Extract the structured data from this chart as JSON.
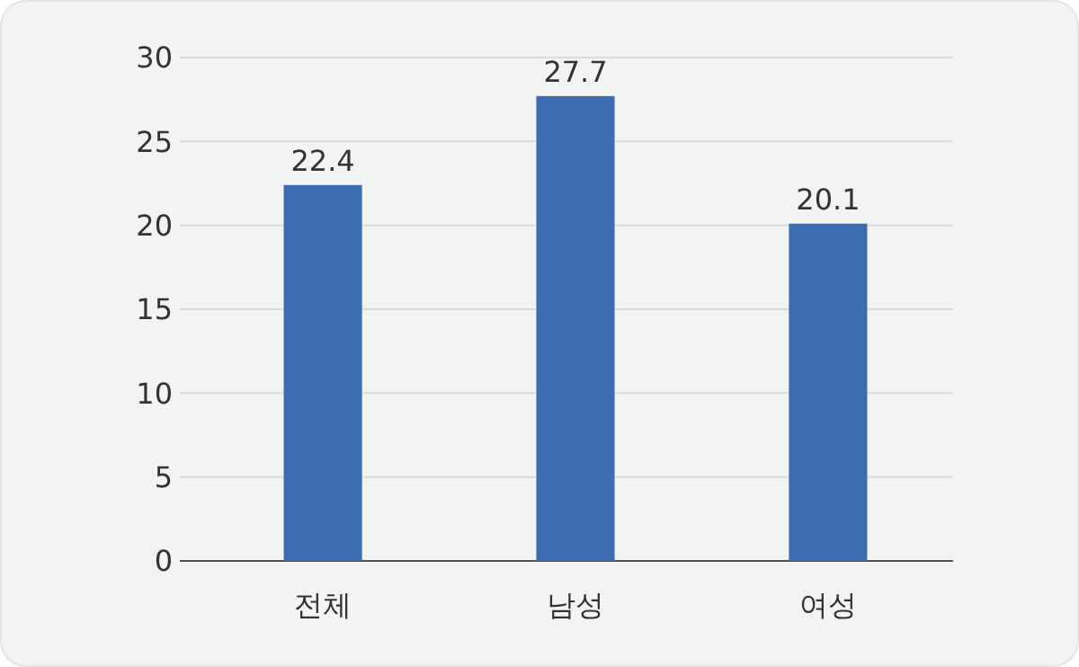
{
  "chart_data": {
    "type": "bar",
    "categories": [
      "전체",
      "남성",
      "여성"
    ],
    "values": [
      22.4,
      27.7,
      20.1
    ],
    "color": "#3d6cb3",
    "data_labels": true,
    "ylim": [
      0,
      30
    ],
    "yticks": [
      0,
      5,
      10,
      15,
      20,
      25,
      30
    ],
    "grid": "y"
  }
}
